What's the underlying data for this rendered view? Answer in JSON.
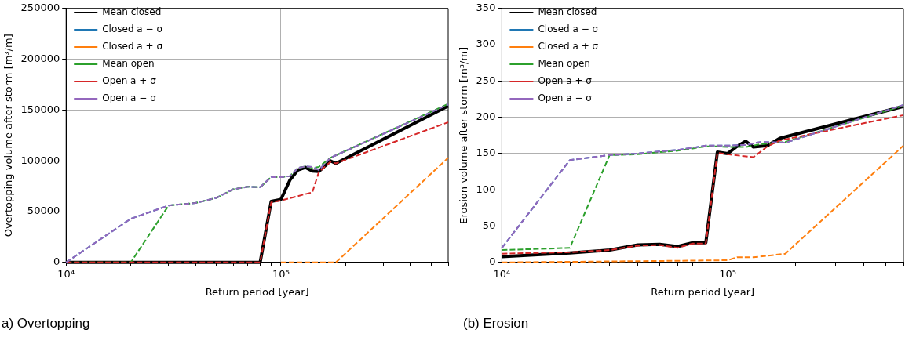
{
  "chart_data": [
    {
      "type": "line",
      "xlabel": "Return period [year]",
      "ylabel": "Overtopping volume after storm [m³/m]",
      "log": "x",
      "xlim": [
        10000,
        600000
      ],
      "xticks": [
        {
          "value": 10000,
          "label": "10⁴"
        },
        {
          "value": 20000,
          "label": null
        },
        {
          "value": 30000,
          "label": null
        },
        {
          "value": 40000,
          "label": null
        },
        {
          "value": 50000,
          "label": null
        },
        {
          "value": 60000,
          "label": null
        },
        {
          "value": 70000,
          "label": null
        },
        {
          "value": 80000,
          "label": null
        },
        {
          "value": 90000,
          "label": null
        },
        {
          "value": 100000,
          "label": "10⁵"
        },
        {
          "value": 200000,
          "label": null
        },
        {
          "value": 300000,
          "label": null
        },
        {
          "value": 400000,
          "label": null
        },
        {
          "value": 500000,
          "label": null
        },
        {
          "value": 600000,
          "label": null
        }
      ],
      "ylim": [
        0,
        250000
      ],
      "yticks": [
        0,
        50000,
        100000,
        150000,
        200000,
        250000
      ],
      "grid": true,
      "legend": "top left",
      "annotations": [
        "a) Overtopping"
      ],
      "series": [
        {
          "name": "Mean closed",
          "color": "#000000",
          "line_style": "solid",
          "x": [
            10000,
            80000,
            90000,
            100000,
            110000,
            120000,
            130000,
            140000,
            150000,
            170000,
            180000,
            600000
          ],
          "values": [
            0,
            0,
            60000,
            62000,
            81000,
            91000,
            93500,
            90000,
            89500,
            100000,
            97500,
            154000
          ]
        },
        {
          "name": "Closed a − σ",
          "color": "#1f77b4",
          "line_style": "dashed",
          "x": [
            10000,
            20000,
            30000,
            40000,
            50000,
            60000,
            70000,
            80000,
            90000,
            100000,
            110000,
            120000,
            130000,
            140000,
            150000,
            170000,
            600000
          ],
          "values": [
            0,
            43000,
            56000,
            58500,
            63500,
            72000,
            74500,
            74000,
            84000,
            84000,
            85000,
            93000,
            94500,
            94000,
            91000,
            103000,
            155500
          ]
        },
        {
          "name": "Closed a + σ",
          "color": "#ff7f0e",
          "line_style": "dashed",
          "x": [
            100000,
            180000,
            600000
          ],
          "values": [
            0,
            0,
            103000
          ]
        },
        {
          "name": "Mean open",
          "color": "#2ca02c",
          "line_style": "dashed",
          "x": [
            10000,
            20000,
            30000,
            40000,
            50000,
            60000,
            70000,
            80000,
            90000,
            100000,
            110000,
            120000,
            130000,
            140000,
            150000,
            170000,
            600000
          ],
          "values": [
            0,
            0,
            56000,
            58500,
            63500,
            72000,
            74500,
            74000,
            84000,
            84000,
            85000,
            93000,
            94500,
            93000,
            94000,
            103000,
            156000
          ]
        },
        {
          "name": "Open a + σ",
          "color": "#d62728",
          "line_style": "dashed",
          "x": [
            10000,
            80000,
            90000,
            100000,
            140000,
            150000,
            170000,
            180000,
            600000
          ],
          "values": [
            0,
            0,
            59000,
            61000,
            69000,
            89000,
            99000,
            97500,
            138000
          ]
        },
        {
          "name": "Open a − σ",
          "color": "#9467bd",
          "line_style": "dashed",
          "x": [
            10000,
            20000,
            30000,
            40000,
            50000,
            60000,
            70000,
            80000,
            90000,
            100000,
            110000,
            120000,
            130000,
            140000,
            150000,
            170000,
            600000
          ],
          "values": [
            0,
            43000,
            56000,
            58500,
            63500,
            72000,
            74500,
            74000,
            84000,
            84000,
            85000,
            93000,
            94500,
            94000,
            91000,
            103000,
            155500
          ]
        }
      ]
    },
    {
      "type": "line",
      "xlabel": "Return period [year]",
      "ylabel": "Erosion volume after storm [m³/m]",
      "log": "x",
      "xlim": [
        10000,
        600000
      ],
      "xticks": [
        {
          "value": 10000,
          "label": "10⁴"
        },
        {
          "value": 20000,
          "label": null
        },
        {
          "value": 30000,
          "label": null
        },
        {
          "value": 40000,
          "label": null
        },
        {
          "value": 50000,
          "label": null
        },
        {
          "value": 60000,
          "label": null
        },
        {
          "value": 70000,
          "label": null
        },
        {
          "value": 80000,
          "label": null
        },
        {
          "value": 90000,
          "label": null
        },
        {
          "value": 100000,
          "label": "10⁵"
        },
        {
          "value": 200000,
          "label": null
        },
        {
          "value": 300000,
          "label": null
        },
        {
          "value": 400000,
          "label": null
        },
        {
          "value": 500000,
          "label": null
        },
        {
          "value": 600000,
          "label": null
        }
      ],
      "ylim": [
        0,
        350
      ],
      "yticks": [
        0,
        50,
        100,
        150,
        200,
        250,
        300,
        350
      ],
      "grid": true,
      "legend": "top left",
      "annotations": [
        "(b) Erosion"
      ],
      "series": [
        {
          "name": "Mean closed",
          "color": "#000000",
          "line_style": "solid",
          "x": [
            10000,
            20000,
            30000,
            40000,
            50000,
            60000,
            70000,
            80000,
            90000,
            100000,
            110000,
            120000,
            130000,
            150000,
            170000,
            600000
          ],
          "values": [
            8,
            13,
            17,
            24,
            25,
            22,
            27,
            27,
            152,
            150,
            160,
            167,
            159,
            161,
            171,
            215
          ]
        },
        {
          "name": "Closed a − σ",
          "color": "#1f77b4",
          "line_style": "dashed",
          "x": [
            10000,
            20000,
            30000,
            40000,
            50000,
            60000,
            70000,
            80000,
            90000,
            100000,
            120000,
            140000,
            180000,
            600000
          ],
          "values": [
            20,
            141,
            148,
            150,
            153,
            155,
            158,
            161,
            161,
            161,
            162,
            166,
            165,
            217
          ]
        },
        {
          "name": "Closed a + σ",
          "color": "#ff7f0e",
          "line_style": "dashed",
          "x": [
            10000,
            50000,
            100000,
            110000,
            130000,
            180000,
            600000
          ],
          "values": [
            0,
            2,
            3,
            7,
            7,
            12,
            161
          ]
        },
        {
          "name": "Mean open",
          "color": "#2ca02c",
          "line_style": "dashed",
          "x": [
            10000,
            20000,
            30000,
            40000,
            50000,
            60000,
            70000,
            80000,
            90000,
            100000,
            120000,
            140000,
            180000,
            600000
          ],
          "values": [
            17,
            20,
            148,
            149,
            152,
            154,
            157,
            160,
            160,
            159,
            159,
            163,
            166,
            216
          ]
        },
        {
          "name": "Open a + σ",
          "color": "#d62728",
          "line_style": "dashed",
          "x": [
            10000,
            20000,
            30000,
            40000,
            50000,
            60000,
            70000,
            80000,
            90000,
            100000,
            130000,
            150000,
            170000,
            600000
          ],
          "values": [
            12,
            14,
            17,
            23,
            24,
            20,
            26,
            26,
            151,
            149,
            145,
            160,
            168,
            203
          ]
        },
        {
          "name": "Open a − σ",
          "color": "#9467bd",
          "line_style": "dashed",
          "x": [
            10000,
            20000,
            30000,
            40000,
            50000,
            60000,
            70000,
            80000,
            90000,
            100000,
            120000,
            140000,
            180000,
            600000
          ],
          "values": [
            20,
            141,
            148,
            150,
            153,
            155,
            158,
            161,
            161,
            161,
            162,
            166,
            165,
            217
          ]
        }
      ]
    }
  ]
}
